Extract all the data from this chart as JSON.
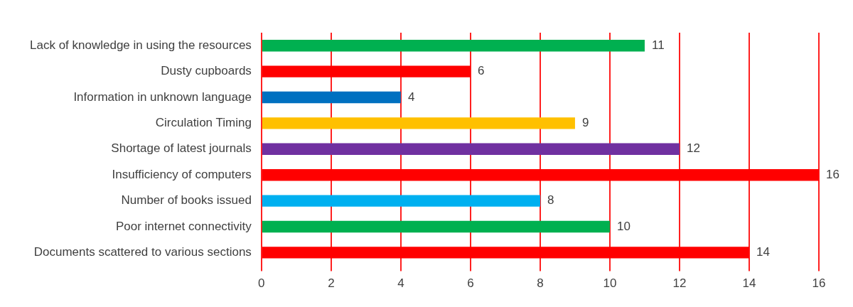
{
  "chart_data": {
    "type": "bar",
    "orientation": "horizontal",
    "categories": [
      "Lack of knowledge in using the resources",
      "Dusty cupboards",
      "Information in unknown language",
      "Circulation Timing",
      "Shortage of latest journals",
      "Insufficiency of computers",
      "Number of books issued",
      "Poor internet connectivity",
      "Documents scattered to various sections"
    ],
    "values": [
      11,
      6,
      4,
      9,
      12,
      16,
      8,
      10,
      14
    ],
    "colors": [
      "#00b050",
      "#ff0000",
      "#0070c0",
      "#ffc000",
      "#7030a0",
      "#ff0000",
      "#00b0f0",
      "#00b050",
      "#ff0000"
    ],
    "xlim": [
      0,
      16
    ],
    "xticks": [
      0,
      2,
      4,
      6,
      8,
      10,
      12,
      14,
      16
    ],
    "grid": "x",
    "data_labels": true,
    "legend": false
  }
}
